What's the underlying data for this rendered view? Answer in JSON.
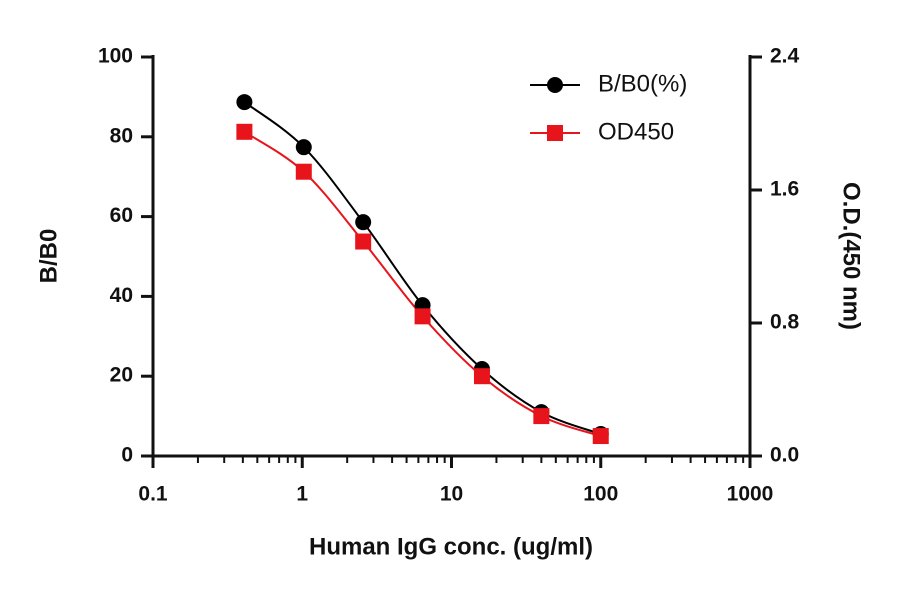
{
  "chart_data": {
    "type": "line",
    "x_label": "Human IgG conc. (ug/ml)",
    "y_label": "B/B0",
    "y2_label": "O.D.(450 nm)",
    "x": [
      0.4096,
      1.024,
      2.56,
      6.4,
      16,
      40,
      100
    ],
    "series": [
      {
        "name": "B/B0(%)",
        "color": "#000000",
        "marker": "circle",
        "axis": "y",
        "values": [
          88.7,
          77.4,
          58.6,
          37.8,
          21.8,
          11.0,
          5.5
        ]
      },
      {
        "name": "OD450",
        "color": "#e8141b",
        "marker": "square",
        "axis": "y2",
        "values": [
          1.95,
          1.71,
          1.29,
          0.84,
          0.48,
          0.24,
          0.12
        ]
      }
    ],
    "xscale": "log",
    "xlim": [
      0.1,
      1000
    ],
    "xticks": [
      0.1,
      1,
      10,
      100,
      1000
    ],
    "xminorticks": [
      0.2,
      0.3,
      0.4,
      0.5,
      0.6,
      0.7,
      0.8,
      0.9,
      2,
      3,
      4,
      5,
      6,
      7,
      8,
      9,
      20,
      30,
      40,
      50,
      60,
      70,
      80,
      90,
      200,
      300,
      400,
      500,
      600,
      700,
      800,
      900
    ],
    "ylim": [
      0,
      100
    ],
    "yticks": [
      0,
      20,
      40,
      60,
      80,
      100
    ],
    "y2lim": [
      0,
      2.4
    ],
    "y2ticks": [
      {
        "value": 0,
        "label": "0.0"
      },
      0.8,
      1.6,
      2.4
    ],
    "legend": "upper right",
    "grid": false
  }
}
